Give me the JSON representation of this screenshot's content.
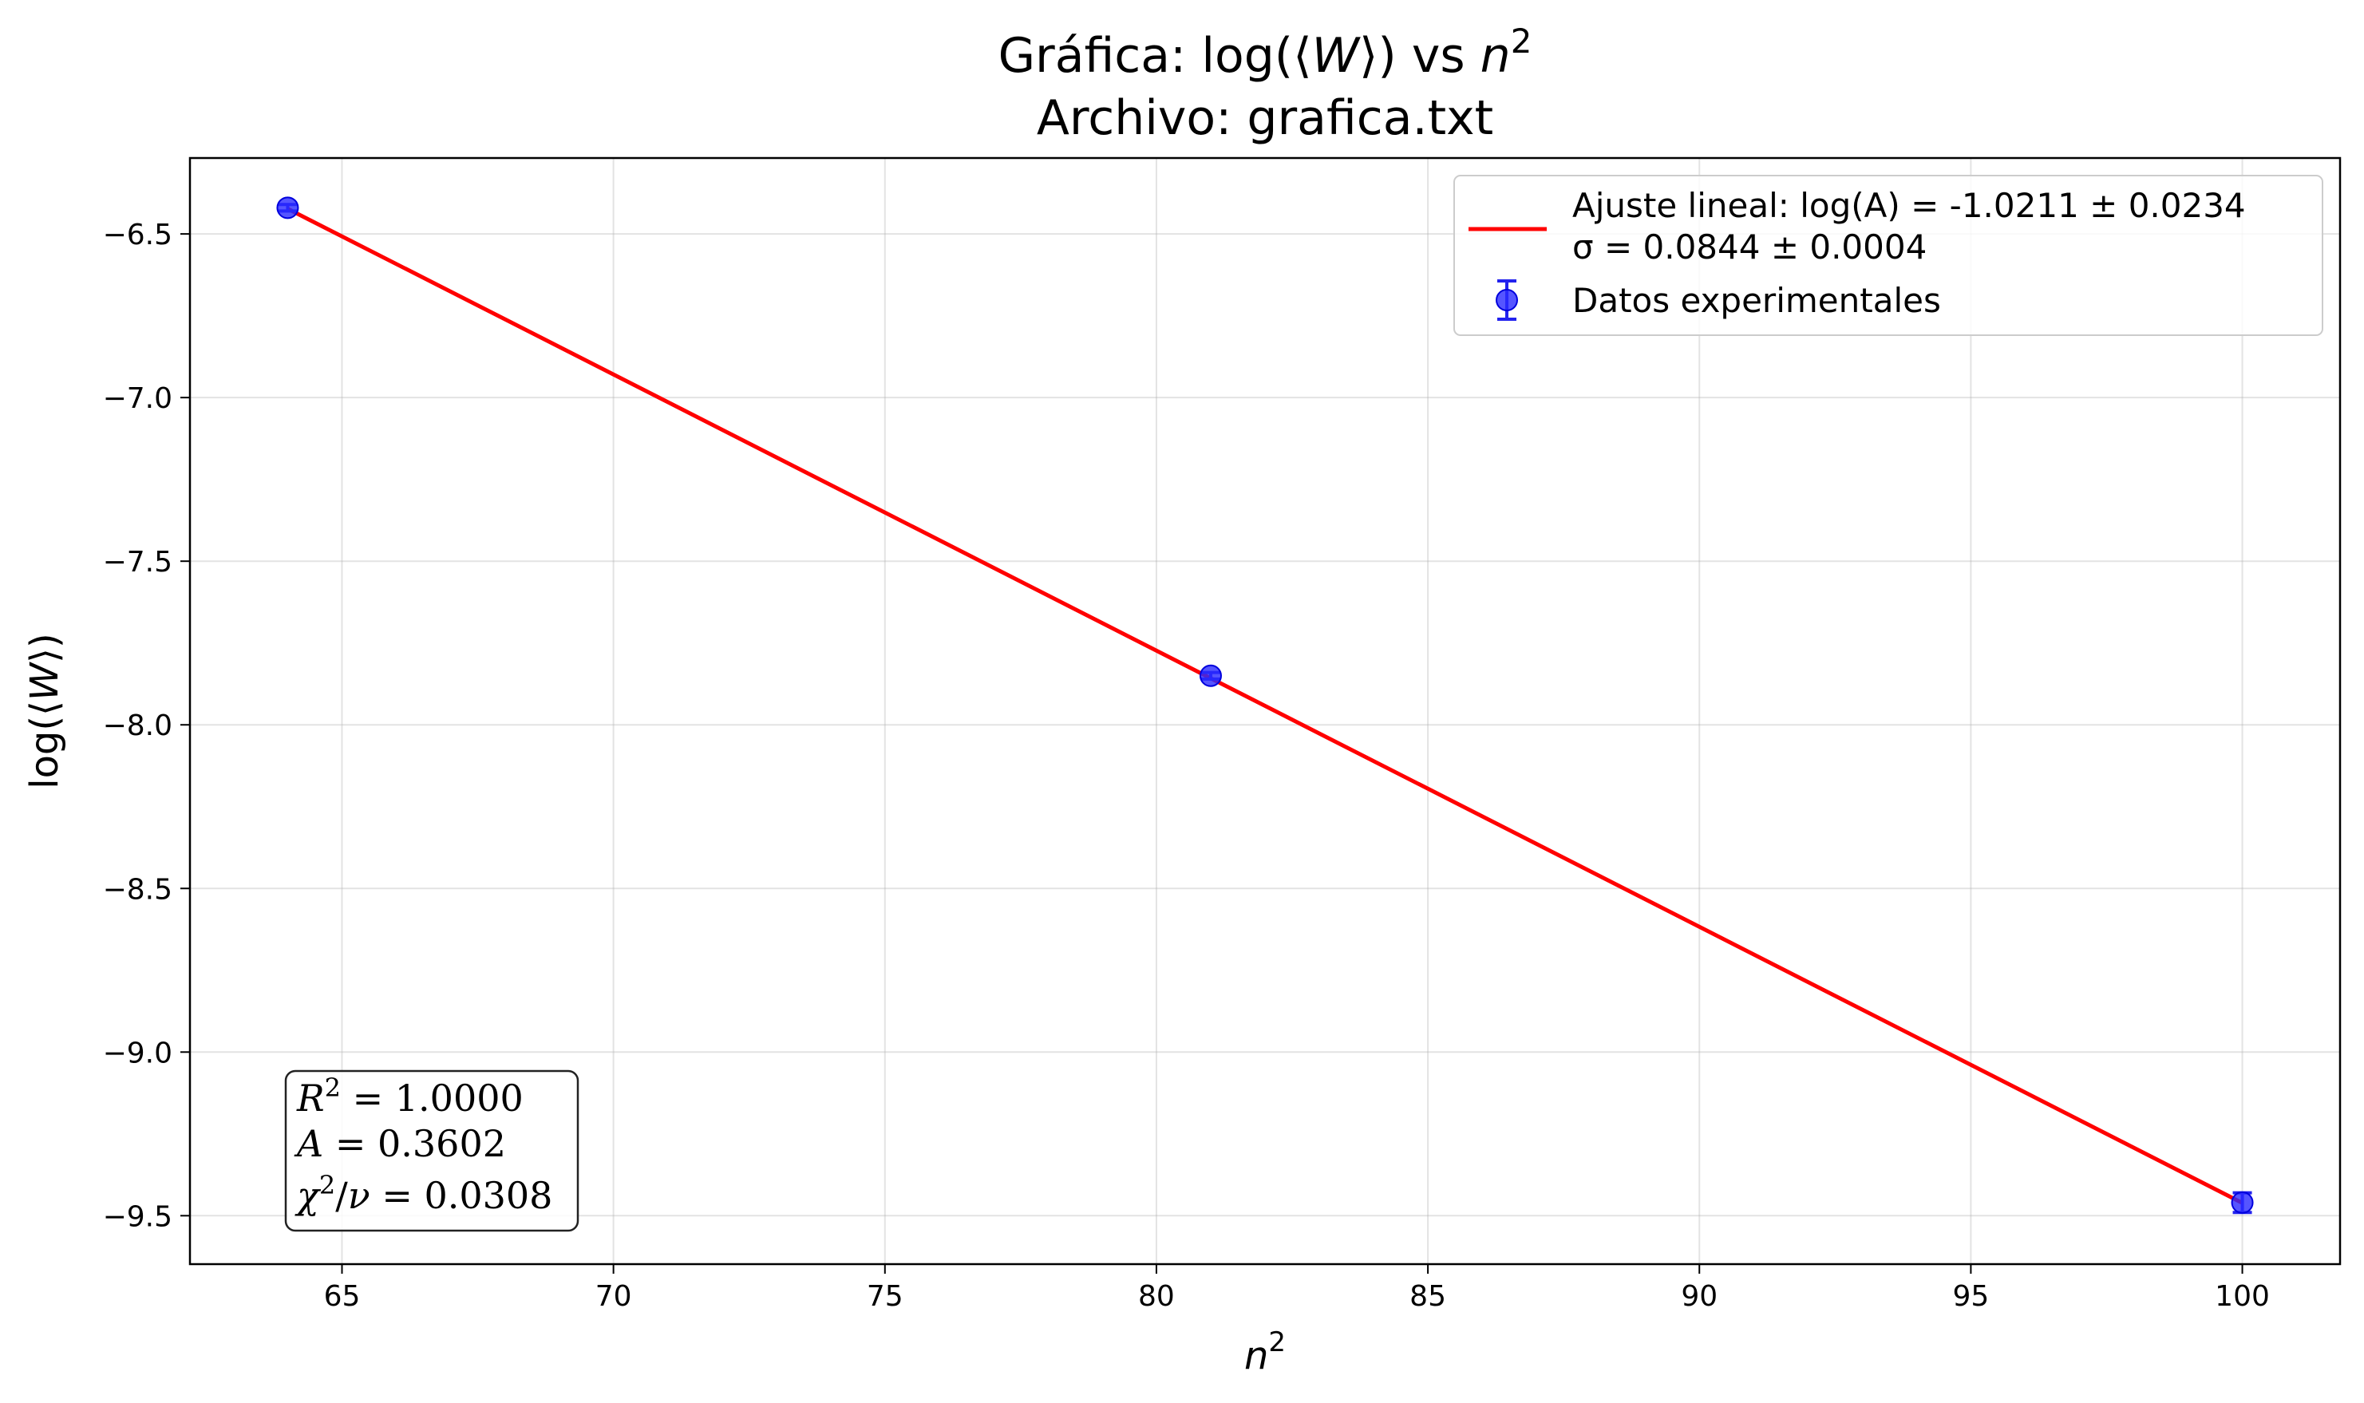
{
  "chart_data": {
    "type": "scatter",
    "title_line1_prefix": "Gráfica: log(⟨",
    "title_line1_var": "W",
    "title_line1_mid": "⟩) vs ",
    "title_line1_n": "n",
    "title_line1_exp": "2",
    "title_line2": "Archivo: grafica.txt",
    "xlabel_base": "n",
    "xlabel_exp": "2",
    "ylabel_prefix": "log(⟨",
    "ylabel_var": "W",
    "ylabel_suffix": "⟩)",
    "xlim": [
      62.2,
      101.8
    ],
    "ylim": [
      -9.648,
      -6.268
    ],
    "x_ticks": [
      65,
      70,
      75,
      80,
      85,
      90,
      95,
      100
    ],
    "y_ticks": [
      -6.5,
      -7.0,
      -7.5,
      -8.0,
      -8.5,
      -9.0,
      -9.5
    ],
    "grid": true,
    "legend_position": "top-right",
    "series": [
      {
        "name": "Datos experimentales",
        "kind": "errorbar-points",
        "color": "#0000ff",
        "x": [
          64,
          81,
          100
        ],
        "y": [
          -6.42,
          -7.85,
          -9.46
        ],
        "yerr": [
          0.01,
          0.01,
          0.03
        ]
      },
      {
        "name": "Ajuste lineal: log(A) = -1.0211 ± 0.0234",
        "name_line2": "σ = 0.0844 ± 0.0004",
        "kind": "line",
        "color": "#ff0000",
        "x": [
          64,
          100
        ],
        "y": [
          -6.423,
          -9.461
        ]
      }
    ],
    "stats_box": {
      "r2_label": "R",
      "r2_exp": "2",
      "r2_value": " = 1.0000",
      "a_label": "A",
      "a_value": " = 0.3602",
      "chi_label": "χ",
      "chi_exp": "2",
      "chi_mid": "/",
      "chi_nu": "ν",
      "chi_value": " = 0.0308"
    }
  }
}
